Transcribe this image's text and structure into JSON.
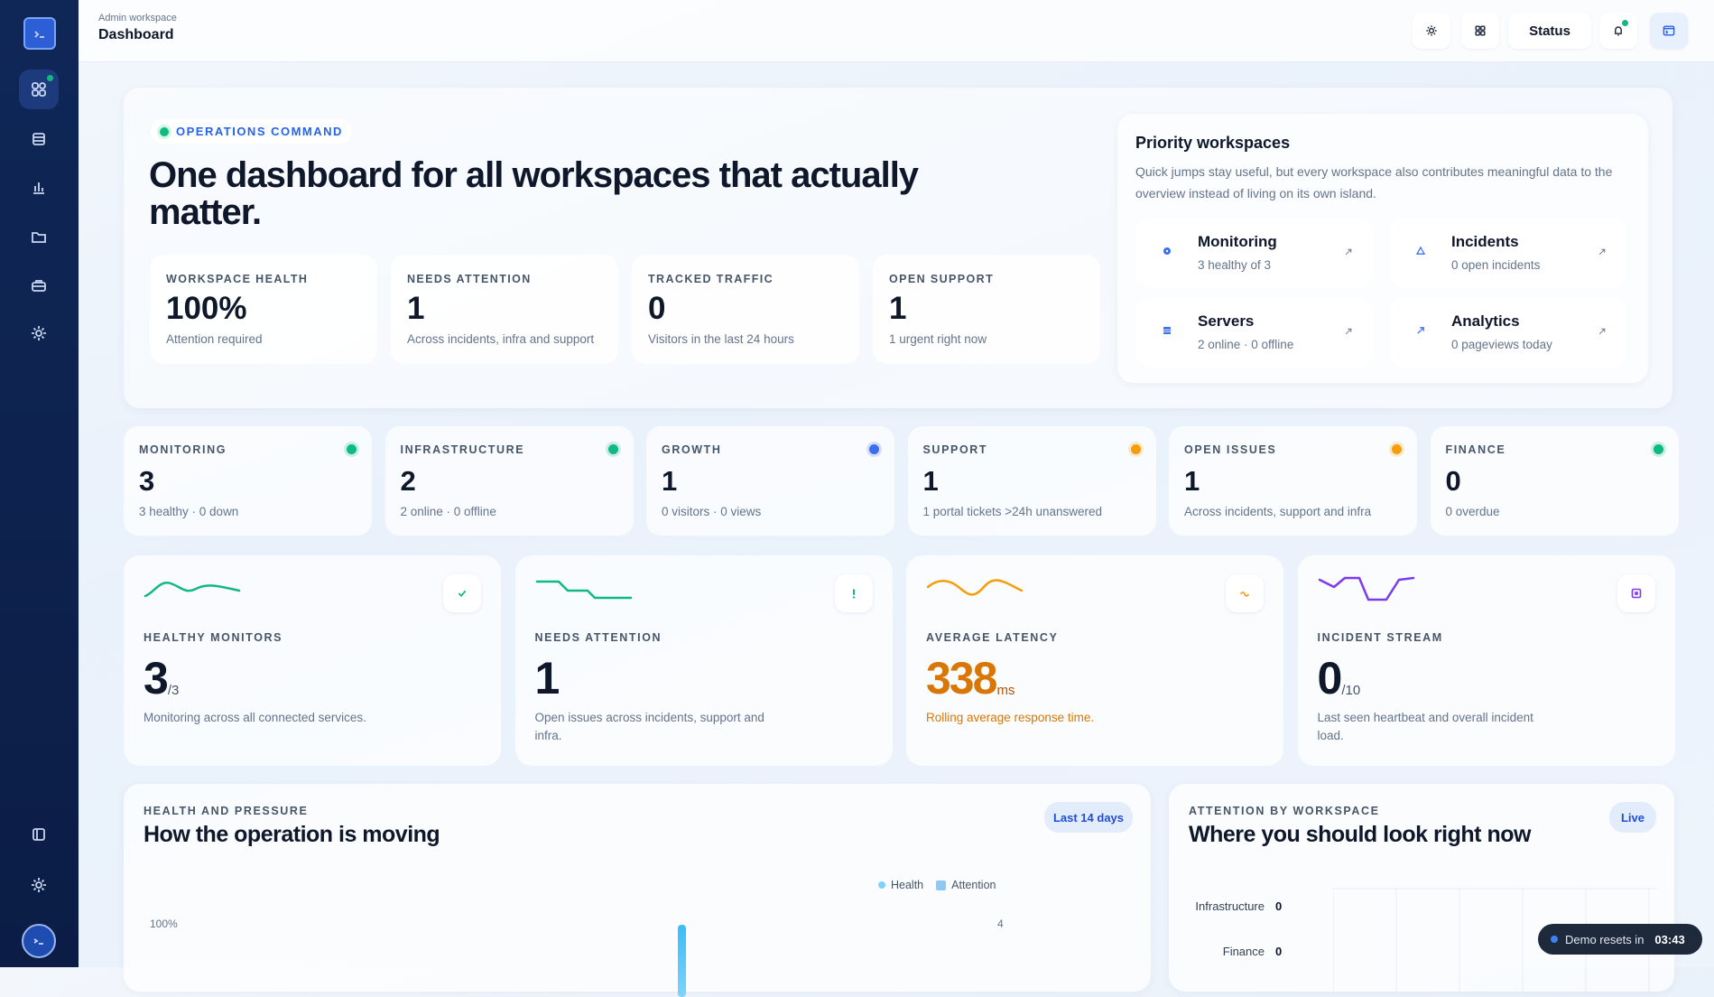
{
  "header": {
    "breadcrumb": "Admin workspace",
    "title": "Dashboard",
    "status": "Status"
  },
  "hero": {
    "badge": "OPERATIONS COMMAND",
    "title": "One dashboard for all workspaces that actually matter.",
    "stats": [
      {
        "label": "WORKSPACE HEALTH",
        "value": "100%",
        "note": "Attention required"
      },
      {
        "label": "NEEDS ATTENTION",
        "value": "1",
        "note": "Across incidents, infra and support"
      },
      {
        "label": "TRACKED TRAFFIC",
        "value": "0",
        "note": "Visitors in the last 24 hours"
      },
      {
        "label": "OPEN SUPPORT",
        "value": "1",
        "note": "1 urgent right now"
      }
    ]
  },
  "priority": {
    "title": "Priority workspaces",
    "description": "Quick jumps stay useful, but every workspace also contributes meaningful data to the overview instead of living on its own island.",
    "items": [
      {
        "name": "Monitoring",
        "note": "3 healthy of 3"
      },
      {
        "name": "Incidents",
        "note": "0 open incidents"
      },
      {
        "name": "Servers",
        "note": "2 online · 0 offline"
      },
      {
        "name": "Analytics",
        "note": "0 pageviews today"
      }
    ]
  },
  "summary": [
    {
      "label": "MONITORING",
      "value": "3",
      "note": "3 healthy · 0 down",
      "color": "#10b981"
    },
    {
      "label": "INFRASTRUCTURE",
      "value": "2",
      "note": "2 online · 0 offline",
      "color": "#10b981"
    },
    {
      "label": "GROWTH",
      "value": "1",
      "note": "0 visitors · 0 views",
      "color": "#3b6ff0"
    },
    {
      "label": "SUPPORT",
      "value": "1",
      "note": "1 portal tickets >24h unanswered",
      "color": "#f59e0b"
    },
    {
      "label": "OPEN ISSUES",
      "value": "1",
      "note": "Across incidents, support and infra",
      "color": "#f59e0b"
    },
    {
      "label": "FINANCE",
      "value": "0",
      "note": "0 overdue",
      "color": "#10b981"
    }
  ],
  "metrics": [
    {
      "label": "HEALTHY MONITORS",
      "value": "3",
      "unit": "/3",
      "note": "Monitoring across all connected services.",
      "color": "#10b981"
    },
    {
      "label": "NEEDS ATTENTION",
      "value": "1",
      "note": "Open issues across incidents, support and infra.",
      "color": "#10b981"
    },
    {
      "label": "AVERAGE LATENCY",
      "value": "338",
      "unit": "ms",
      "note": "Rolling average response time.",
      "color": "#f59e0b"
    },
    {
      "label": "INCIDENT STREAM",
      "value": "0",
      "unit": "/10",
      "note": "Last seen heartbeat and overall incident load.",
      "color": "#7c3aed"
    }
  ],
  "health_panel": {
    "eyebrow": "HEALTH AND PRESSURE",
    "title": "How the operation is moving",
    "badge": "Last 14 days",
    "legend": [
      "Health",
      "Attention"
    ],
    "left_axis_top": "100%",
    "right_axis_top": "4"
  },
  "attention_panel": {
    "eyebrow": "ATTENTION BY WORKSPACE",
    "title": "Where you should look right now",
    "badge": "Live",
    "rows": [
      {
        "label": "Infrastructure",
        "value": "0"
      },
      {
        "label": "Finance",
        "value": "0"
      }
    ]
  },
  "toast": {
    "text": "Demo resets in",
    "time": "03:43"
  }
}
